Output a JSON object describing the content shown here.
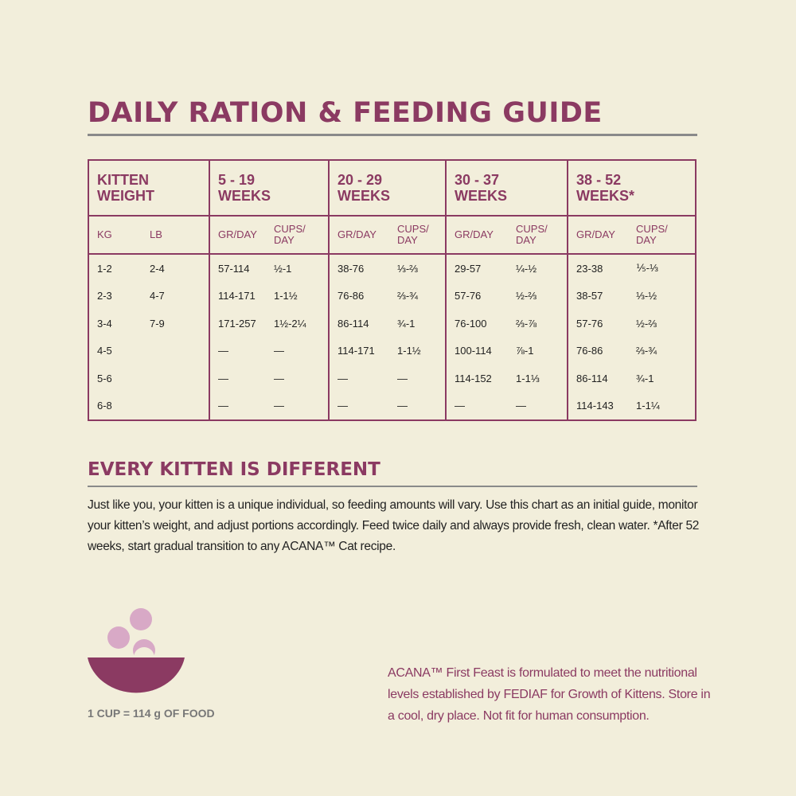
{
  "title": "DAILY RATION & FEEDING GUIDE",
  "table": {
    "group_headers": [
      "KITTEN WEIGHT",
      "5 - 19\nWEEKS",
      "20 - 29\nWEEKS",
      "30 - 37\nWEEKS",
      "38 - 52\nWEEKS*"
    ],
    "sub_headers": [
      "KG",
      "LB",
      "GR/DAY",
      "CUPS/\nDAY",
      "GR/DAY",
      "CUPS/\nDAY",
      "GR/DAY",
      "CUPS/\nDAY",
      "GR/DAY",
      "CUPS/\nDAY"
    ],
    "rows": [
      [
        "1-2",
        "2-4",
        "57-114",
        "½-1",
        "38-76",
        "⅓-⅔",
        "29-57",
        "¼-½",
        "23-38",
        "⅕-⅓"
      ],
      [
        "2-3",
        "4-7",
        "114-171",
        "1-1½",
        "76-86",
        "⅔-¾",
        "57-76",
        "½-⅔",
        "38-57",
        "⅓-½"
      ],
      [
        "3-4",
        "7-9",
        "171-257",
        "1½-2¼",
        "86-114",
        "¾-1",
        "76-100",
        "⅔-⅞",
        "57-76",
        "½-⅔"
      ],
      [
        "4-5",
        null,
        "—",
        "—",
        "114-171",
        "1-1½",
        "100-114",
        "⅞-1",
        "76-86",
        "⅔-¾"
      ],
      [
        "5-6",
        null,
        "—",
        "—",
        "—",
        "—",
        "114-152",
        "1-1⅓",
        "86-114",
        "¾-1"
      ],
      [
        "6-8",
        null,
        "—",
        "—",
        "—",
        "—",
        "—",
        "—",
        "114-143",
        "1-1¼"
      ]
    ]
  },
  "section": {
    "title": "EVERY KITTEN IS DIFFERENT",
    "text": "Just like you, your kitten is a unique individual, so feeding amounts will vary. Use this chart as an initial guide, monitor your kitten’s weight, and adjust portions accordingly. Feed twice daily and always provide fresh, clean water. *After 52 weeks, start gradual transition to any ACANA™ Cat recipe."
  },
  "bowl_caption": "1 CUP = 114 g OF FOOD",
  "note": "ACANA™ First Feast is formulated to meet the nutritional levels established by FEDIAF for Growth of Kittens. Store in a cool, dry place. Not fit for human consumption."
}
